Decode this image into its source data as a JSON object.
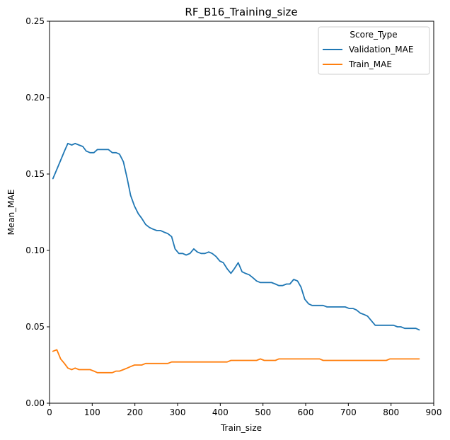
{
  "chart_data": {
    "type": "line",
    "title": "RF_B16_Training_size",
    "xlabel": "Train_size",
    "ylabel": "Mean_MAE",
    "xlim": [
      0,
      900
    ],
    "ylim": [
      0,
      0.25
    ],
    "xticks": [
      0,
      100,
      200,
      300,
      400,
      500,
      600,
      700,
      800,
      900
    ],
    "yticks": [
      0.0,
      0.05,
      0.1,
      0.15,
      0.2,
      0.25
    ],
    "xtick_labels": [
      "0",
      "100",
      "200",
      "300",
      "400",
      "500",
      "600",
      "700",
      "800",
      "900"
    ],
    "ytick_labels": [
      "0.00",
      "0.05",
      "0.10",
      "0.15",
      "0.20",
      "0.25"
    ],
    "grid": false,
    "legend": {
      "title": "Score_Type",
      "placement": "upper right"
    },
    "series": [
      {
        "name": "Validation_MAE",
        "color": "#1f77b4",
        "x": [
          8,
          17,
          26,
          35,
          43,
          52,
          60,
          69,
          78,
          86,
          95,
          104,
          112,
          121,
          130,
          138,
          147,
          156,
          164,
          173,
          182,
          190,
          199,
          208,
          216,
          225,
          234,
          242,
          251,
          260,
          268,
          277,
          286,
          294,
          303,
          312,
          320,
          329,
          338,
          346,
          355,
          364,
          373,
          381,
          390,
          399,
          407,
          416,
          425,
          433,
          442,
          451,
          459,
          468,
          477,
          485,
          494,
          503,
          511,
          520,
          529,
          537,
          546,
          555,
          563,
          572,
          581,
          589,
          598,
          607,
          615,
          624,
          633,
          641,
          650,
          659,
          667,
          676,
          685,
          693,
          702,
          711,
          719,
          728,
          737,
          745,
          754,
          763,
          771,
          780,
          789,
          797,
          806,
          815,
          823,
          832,
          841,
          849,
          858,
          866
        ],
        "y": [
          0.147,
          0.153,
          0.159,
          0.165,
          0.17,
          0.169,
          0.17,
          0.169,
          0.168,
          0.165,
          0.164,
          0.164,
          0.166,
          0.166,
          0.166,
          0.166,
          0.164,
          0.164,
          0.163,
          0.158,
          0.147,
          0.136,
          0.129,
          0.124,
          0.121,
          0.117,
          0.115,
          0.114,
          0.113,
          0.113,
          0.112,
          0.111,
          0.109,
          0.101,
          0.098,
          0.098,
          0.097,
          0.098,
          0.101,
          0.099,
          0.098,
          0.098,
          0.099,
          0.098,
          0.096,
          0.093,
          0.092,
          0.088,
          0.085,
          0.088,
          0.092,
          0.086,
          0.085,
          0.084,
          0.082,
          0.08,
          0.079,
          0.079,
          0.079,
          0.079,
          0.078,
          0.077,
          0.077,
          0.078,
          0.078,
          0.081,
          0.08,
          0.076,
          0.068,
          0.065,
          0.064,
          0.064,
          0.064,
          0.064,
          0.063,
          0.063,
          0.063,
          0.063,
          0.063,
          0.063,
          0.062,
          0.062,
          0.061,
          0.059,
          0.058,
          0.057,
          0.054,
          0.051,
          0.051,
          0.051,
          0.051,
          0.051,
          0.051,
          0.05,
          0.05,
          0.049,
          0.049,
          0.049,
          0.049,
          0.048
        ]
      },
      {
        "name": "Train_MAE",
        "color": "#ff7f0e",
        "x": [
          8,
          17,
          26,
          35,
          43,
          52,
          60,
          69,
          78,
          86,
          95,
          104,
          112,
          121,
          130,
          138,
          147,
          156,
          164,
          173,
          182,
          190,
          199,
          208,
          216,
          225,
          234,
          242,
          251,
          260,
          268,
          277,
          286,
          294,
          303,
          312,
          320,
          329,
          338,
          346,
          355,
          364,
          373,
          381,
          390,
          399,
          407,
          416,
          425,
          433,
          442,
          451,
          459,
          468,
          477,
          485,
          494,
          503,
          511,
          520,
          529,
          537,
          546,
          555,
          563,
          572,
          581,
          589,
          598,
          607,
          615,
          624,
          633,
          641,
          650,
          659,
          667,
          676,
          685,
          693,
          702,
          711,
          719,
          728,
          737,
          745,
          754,
          763,
          771,
          780,
          789,
          797,
          806,
          815,
          823,
          832,
          841,
          849,
          858,
          866
        ],
        "y": [
          0.034,
          0.035,
          0.029,
          0.026,
          0.023,
          0.022,
          0.023,
          0.022,
          0.022,
          0.022,
          0.022,
          0.021,
          0.02,
          0.02,
          0.02,
          0.02,
          0.02,
          0.021,
          0.021,
          0.022,
          0.023,
          0.024,
          0.025,
          0.025,
          0.025,
          0.026,
          0.026,
          0.026,
          0.026,
          0.026,
          0.026,
          0.026,
          0.027,
          0.027,
          0.027,
          0.027,
          0.027,
          0.027,
          0.027,
          0.027,
          0.027,
          0.027,
          0.027,
          0.027,
          0.027,
          0.027,
          0.027,
          0.027,
          0.028,
          0.028,
          0.028,
          0.028,
          0.028,
          0.028,
          0.028,
          0.028,
          0.029,
          0.028,
          0.028,
          0.028,
          0.028,
          0.029,
          0.029,
          0.029,
          0.029,
          0.029,
          0.029,
          0.029,
          0.029,
          0.029,
          0.029,
          0.029,
          0.029,
          0.028,
          0.028,
          0.028,
          0.028,
          0.028,
          0.028,
          0.028,
          0.028,
          0.028,
          0.028,
          0.028,
          0.028,
          0.028,
          0.028,
          0.028,
          0.028,
          0.028,
          0.028,
          0.029,
          0.029,
          0.029,
          0.029,
          0.029,
          0.029,
          0.029,
          0.029,
          0.029
        ]
      }
    ]
  }
}
